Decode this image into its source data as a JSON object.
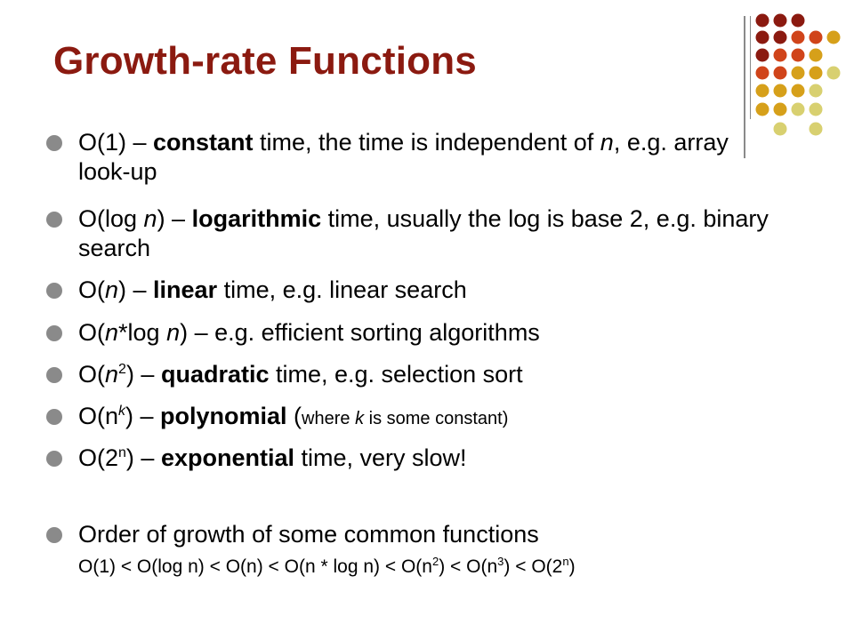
{
  "title": "Growth-rate Functions",
  "colors": {
    "title": "#8b1a10",
    "bullet": "#8a8a8a",
    "dot_dark": "#8b1a10",
    "dot_orange": "#d0441a",
    "dot_gold": "#d6a01a",
    "dot_pale": "#d8d070"
  },
  "bullets": [
    {
      "p1": "O(1) – ",
      "bold": "constant",
      "p2": " time, the time is independent of ",
      "ital": "n",
      "p3": ", e.g. array look-up"
    },
    {
      "p1": "O(log ",
      "ital": "n",
      "p2": ") – ",
      "bold": "logarithmic",
      "p3": " time, usually the log is base 2, e.g. binary search"
    },
    {
      "p1": "O(",
      "ital": "n",
      "p2": ") – ",
      "bold": "linear",
      "p3": " time, e.g. linear search"
    },
    {
      "p1": "O(",
      "ital": "n",
      "p2": "*log ",
      "ital2": "n",
      "p3": ") – e.g. efficient sorting algorithms"
    },
    {
      "p1": "O(",
      "ital": "n",
      "sup": "2",
      "p2": ") – ",
      "bold": "quadratic",
      "p3": " time, e.g. selection sort"
    },
    {
      "p1": "O(n",
      "sup_ital": "k",
      "p2": ") – ",
      "bold": "polynomial",
      "p3": " (",
      "small1": "where ",
      "small_ital": "k",
      "small2": " is some constant",
      "p4": ")"
    },
    {
      "p1": "O(2",
      "sup": "n",
      "p2": ") – ",
      "bold": "exponential",
      "p3": " time, very slow!"
    },
    {
      "p1": "Order of growth of some common functions"
    }
  ],
  "order_line": {
    "a": "O(1) < O(log n) < O(n) < O(n * log n) < O(n",
    "s1": "2",
    "b": ") < O(n",
    "s2": "3",
    "c": ") < O(2",
    "s3": "n",
    "d": ")"
  }
}
